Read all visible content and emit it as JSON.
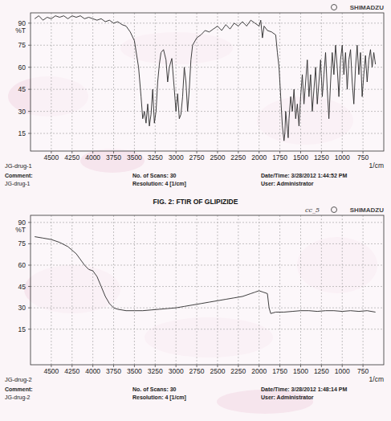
{
  "caption": "FIG. 2: FTIR OF GLIPIZIDE",
  "chart_data": [
    {
      "type": "line",
      "brand": "SHIMADZU",
      "y_label": "%T",
      "x_label": "1/cm",
      "grid": true,
      "footer": {
        "comment": "Comment:",
        "comment_text": "JG-drug-1",
        "scans": "No. of Scans: 30",
        "resolution": "Resolution: 4 [1/cm]",
        "datetime": "Date/Time: 3/28/2012 1:44:52 PM",
        "user": "User: Administrator"
      },
      "xlim": [
        4750,
        500
      ],
      "ylim": [
        3,
        97
      ],
      "xticks": [
        4500,
        4250,
        4000,
        3750,
        3500,
        3250,
        3000,
        2750,
        2500,
        2250,
        2000,
        1750,
        1500,
        1250,
        1000,
        750
      ],
      "yticks": [
        15,
        30,
        45,
        60,
        75,
        90
      ],
      "x": [
        4700,
        4650,
        4600,
        4550,
        4500,
        4450,
        4400,
        4350,
        4300,
        4250,
        4200,
        4150,
        4100,
        4050,
        4000,
        3950,
        3900,
        3850,
        3800,
        3750,
        3700,
        3650,
        3600,
        3550,
        3500,
        3450,
        3420,
        3400,
        3380,
        3360,
        3340,
        3320,
        3300,
        3280,
        3260,
        3240,
        3220,
        3200,
        3180,
        3150,
        3120,
        3100,
        3080,
        3050,
        3020,
        3000,
        2980,
        2960,
        2940,
        2920,
        2900,
        2880,
        2860,
        2840,
        2820,
        2800,
        2750,
        2700,
        2650,
        2600,
        2550,
        2500,
        2450,
        2400,
        2350,
        2300,
        2250,
        2200,
        2150,
        2100,
        2050,
        2000,
        1980,
        1960,
        1940,
        1900,
        1850,
        1800,
        1780,
        1760,
        1740,
        1720,
        1700,
        1690,
        1680,
        1660,
        1650,
        1640,
        1620,
        1600,
        1580,
        1560,
        1540,
        1520,
        1500,
        1480,
        1460,
        1440,
        1420,
        1400,
        1380,
        1360,
        1340,
        1320,
        1300,
        1280,
        1260,
        1240,
        1220,
        1200,
        1180,
        1160,
        1140,
        1120,
        1100,
        1080,
        1060,
        1040,
        1020,
        1000,
        980,
        960,
        940,
        920,
        900,
        880,
        860,
        840,
        820,
        800,
        780,
        760,
        740,
        720,
        700,
        680,
        660,
        640,
        620,
        600
      ],
      "series": [
        {
          "name": "JG-drug-1",
          "color": "#2a2a2a",
          "values": [
            93,
            95,
            92,
            94,
            93,
            95,
            94,
            95,
            93,
            95,
            94,
            95,
            93,
            94,
            93,
            92,
            93,
            91,
            92,
            90,
            91,
            89,
            88,
            84,
            78,
            60,
            40,
            25,
            30,
            22,
            35,
            20,
            28,
            45,
            22,
            30,
            50,
            62,
            70,
            72,
            65,
            50,
            60,
            66,
            45,
            30,
            42,
            25,
            28,
            40,
            60,
            50,
            30,
            45,
            65,
            75,
            80,
            82,
            85,
            84,
            86,
            88,
            85,
            89,
            86,
            90,
            88,
            91,
            88,
            92,
            90,
            88,
            92,
            80,
            88,
            85,
            84,
            82,
            70,
            60,
            40,
            20,
            10,
            15,
            30,
            18,
            12,
            25,
            40,
            30,
            45,
            25,
            35,
            20,
            40,
            55,
            35,
            50,
            65,
            40,
            55,
            30,
            45,
            60,
            35,
            50,
            65,
            40,
            55,
            70,
            45,
            25,
            50,
            70,
            55,
            75,
            60,
            40,
            65,
            75,
            55,
            70,
            45,
            65,
            72,
            50,
            35,
            60,
            75,
            55,
            70,
            40,
            55,
            68,
            50,
            65,
            72,
            60,
            70,
            62
          ]
        }
      ]
    },
    {
      "type": "line",
      "brand": "SHIMADZU",
      "note": "cc_5",
      "y_label": "%T",
      "x_label": "1/cm",
      "grid": true,
      "footer": {
        "comment": "Comment:",
        "comment_text": "JG-drug-2",
        "scans": "No. of Scans: 30",
        "resolution": "Resolution: 4 [1/cm]",
        "datetime": "Date/Time: 3/28/2012 1:48:14 PM",
        "user": "User: Administrator"
      },
      "xlim": [
        4750,
        500
      ],
      "ylim": [
        -10,
        95
      ],
      "xticks": [
        4500,
        4250,
        4000,
        3750,
        3500,
        3250,
        3000,
        2750,
        2500,
        2250,
        2000,
        1750,
        1500,
        1250,
        1000,
        750
      ],
      "yticks": [
        15,
        30,
        45,
        60,
        75,
        90
      ],
      "x": [
        4700,
        4600,
        4500,
        4400,
        4300,
        4200,
        4150,
        4100,
        4050,
        4000,
        3950,
        3900,
        3850,
        3800,
        3750,
        3700,
        3600,
        3500,
        3400,
        3300,
        3200,
        3100,
        3000,
        2900,
        2800,
        2700,
        2600,
        2500,
        2400,
        2300,
        2200,
        2100,
        2050,
        2000,
        1950,
        1900,
        1880,
        1860,
        1800,
        1700,
        1600,
        1500,
        1400,
        1300,
        1200,
        1100,
        1000,
        900,
        800,
        700,
        600
      ],
      "series": [
        {
          "name": "JG-drug-2",
          "color": "#2a2a2a",
          "values": [
            80,
            79,
            78,
            76,
            73,
            68,
            64,
            60,
            57,
            56,
            52,
            45,
            38,
            33,
            30,
            29,
            28,
            28,
            28,
            28.5,
            29,
            29.5,
            30,
            31,
            32,
            33,
            34,
            35,
            36,
            37,
            38,
            40,
            41,
            42,
            41,
            40,
            30,
            26,
            27,
            27,
            27.5,
            28,
            28,
            27.5,
            28,
            28,
            27.5,
            28,
            27.5,
            28,
            27
          ]
        }
      ]
    }
  ]
}
